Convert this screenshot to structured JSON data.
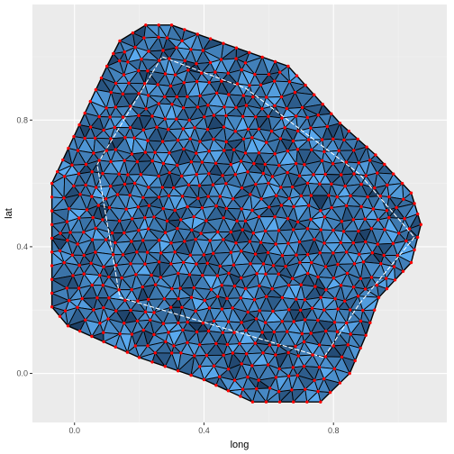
{
  "chart_data": {
    "type": "mesh",
    "title": "",
    "xlabel": "long",
    "ylabel": "lat",
    "xlim": [
      -0.13,
      1.15
    ],
    "ylim": [
      -0.155,
      1.165
    ],
    "xticks": [
      0.0,
      0.4,
      0.8
    ],
    "yticks": [
      0.0,
      0.4,
      0.8
    ],
    "xtick_labels": [
      "0.0",
      "0.4",
      "0.8"
    ],
    "ytick_labels": [
      "0.0",
      "0.4",
      "0.8"
    ],
    "grid": true,
    "outer_boundary": [
      [
        -0.07,
        0.6
      ],
      [
        0.1,
        0.97
      ],
      [
        0.14,
        1.05
      ],
      [
        0.22,
        1.1
      ],
      [
        0.3,
        1.1
      ],
      [
        0.66,
        0.97
      ],
      [
        0.74,
        0.88
      ],
      [
        0.82,
        0.79
      ],
      [
        0.93,
        0.69
      ],
      [
        1.04,
        0.57
      ],
      [
        1.07,
        0.47
      ],
      [
        1.04,
        0.35
      ],
      [
        0.94,
        0.24
      ],
      [
        0.9,
        0.12
      ],
      [
        0.85,
        0.0
      ],
      [
        0.76,
        -0.09
      ],
      [
        0.55,
        -0.09
      ],
      [
        0.4,
        -0.02
      ],
      [
        0.2,
        0.05
      ],
      [
        -0.02,
        0.15
      ],
      [
        -0.07,
        0.21
      ]
    ],
    "inner_boundary": [
      [
        0.07,
        0.66
      ],
      [
        0.27,
        1.0
      ],
      [
        0.53,
        0.9
      ],
      [
        0.88,
        0.63
      ],
      [
        1.05,
        0.43
      ],
      [
        0.88,
        0.22
      ],
      [
        0.77,
        0.05
      ],
      [
        0.14,
        0.24
      ]
    ],
    "colors": {
      "panel_background": "#ebebeb",
      "grid_major": "#ffffff",
      "grid_minor": "#f4f4f4",
      "mesh_fill_light": "#5aa9ee",
      "mesh_fill_dark": "#1a3b60",
      "mesh_edge": "#000000",
      "vertex": "#ff0000",
      "inner_boundary": "#ffffff"
    }
  }
}
